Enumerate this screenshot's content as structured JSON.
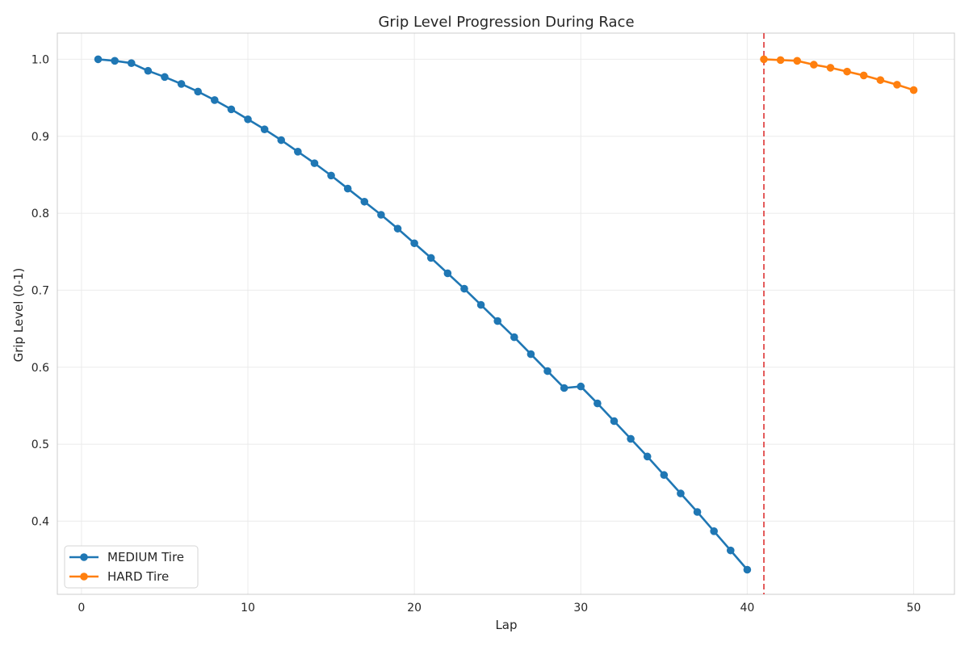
{
  "chart_data": {
    "type": "line",
    "title": "Grip Level Progression During Race",
    "xlabel": "Lap",
    "ylabel": "Grip Level (0-1)",
    "xlim": [
      -1.45,
      52.45
    ],
    "ylim": [
      0.305,
      1.034
    ],
    "x_ticks": [
      0,
      10,
      20,
      30,
      40,
      50
    ],
    "y_ticks": [
      0.4,
      0.5,
      0.6,
      0.7,
      0.8,
      0.9,
      1.0
    ],
    "x_tick_labels": [
      "0",
      "10",
      "20",
      "30",
      "40",
      "50"
    ],
    "y_tick_labels": [
      "0.4",
      "0.5",
      "0.6",
      "0.7",
      "0.8",
      "0.9",
      "1.0"
    ],
    "grid": true,
    "legend_position": "lower-left",
    "series": [
      {
        "name": "MEDIUM Tire",
        "color": "#1f77b4",
        "x": [
          1,
          2,
          3,
          4,
          5,
          6,
          7,
          8,
          9,
          10,
          11,
          12,
          13,
          14,
          15,
          16,
          17,
          18,
          19,
          20,
          21,
          22,
          23,
          24,
          25,
          26,
          27,
          28,
          29,
          30,
          31,
          32,
          33,
          34,
          35,
          36,
          37,
          38,
          39,
          40
        ],
        "y": [
          1.0,
          0.998,
          0.995,
          0.985,
          0.977,
          0.968,
          0.958,
          0.947,
          0.935,
          0.922,
          0.909,
          0.895,
          0.88,
          0.865,
          0.849,
          0.832,
          0.815,
          0.798,
          0.78,
          0.761,
          0.742,
          0.722,
          0.702,
          0.681,
          0.66,
          0.639,
          0.617,
          0.595,
          0.573,
          0.575,
          0.553,
          0.53,
          0.507,
          0.484,
          0.46,
          0.436,
          0.412,
          0.387,
          0.362,
          0.337
        ]
      },
      {
        "name": "HARD Tire",
        "color": "#ff7f0e",
        "x": [
          41,
          42,
          43,
          44,
          45,
          46,
          47,
          48,
          49,
          50
        ],
        "y": [
          1.0,
          0.999,
          0.998,
          0.993,
          0.989,
          0.984,
          0.979,
          0.973,
          0.967,
          0.96
        ]
      }
    ],
    "vlines": [
      {
        "x": 41,
        "color": "#e24a4a",
        "style": "dashed"
      }
    ]
  }
}
